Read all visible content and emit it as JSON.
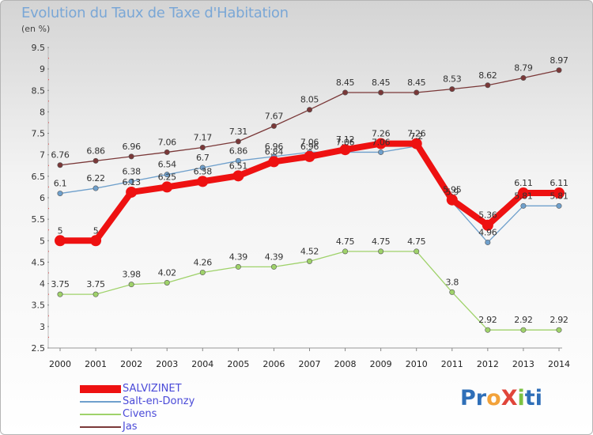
{
  "title": "Evolution du Taux de Taxe d'Habitation",
  "unit_label": "(en %)",
  "logo": {
    "text": "ProXiti",
    "letters": [
      "P",
      "r",
      "o",
      "X",
      "i",
      "t",
      "i"
    ],
    "colors": [
      "#2f6fb8",
      "#2f6fb8",
      "#f2a23a",
      "#e0453a",
      "#7cc242",
      "#2f6fb8",
      "#2f6fb8"
    ]
  },
  "colors": {
    "salvizinet": "#ee1111",
    "salt": "#6fa0cc",
    "civens": "#9fd26a",
    "jas": "#7a3838"
  },
  "chart_data": {
    "type": "line",
    "title": "Evolution du Taux de Taxe d'Habitation",
    "ylabel": "(en %)",
    "xlabel": "",
    "x": [
      "2000",
      "2001",
      "2002",
      "2003",
      "2004",
      "2005",
      "2006",
      "2007",
      "2008",
      "2009",
      "2010",
      "2011",
      "2012",
      "2013",
      "2014"
    ],
    "y_ticks": [
      "2.5",
      "3",
      "3.5",
      "4",
      "4.5",
      "5",
      "5.5",
      "6",
      "6.5",
      "7",
      "7.5",
      "8",
      "8.5",
      "9",
      "9.5"
    ],
    "ylim": [
      2.5,
      9.5
    ],
    "grid": false,
    "legend_position": "bottom-left",
    "series": [
      {
        "name": "SALVIZINET",
        "color": "#ee1111",
        "values": [
          5,
          5,
          6.13,
          6.25,
          6.38,
          6.51,
          6.84,
          6.96,
          7.12,
          7.26,
          7.26,
          5.95,
          5.36,
          6.11,
          6.11
        ],
        "labels": [
          "5",
          "5",
          "6.13",
          "6.25",
          "6.38",
          "6.51",
          "6.84",
          "6.96",
          "7.12",
          "7.26",
          "7.26",
          "5.95",
          "5.36",
          "6.11",
          "6.11"
        ]
      },
      {
        "name": "Salt-en-Donzy",
        "color": "#6fa0cc",
        "values": [
          6.1,
          6.22,
          6.38,
          6.54,
          6.7,
          6.86,
          6.96,
          7.06,
          7.06,
          7.06,
          7.2,
          5.9,
          4.96,
          5.81,
          5.81
        ],
        "labels": [
          "6.1",
          "6.22",
          "6.38",
          "6.54",
          "6.7",
          "6.86",
          "6.96",
          "7.06",
          "7.06",
          "7.06",
          "7.2",
          "5.9",
          "4.96",
          "5.81",
          "5.81"
        ]
      },
      {
        "name": "Civens",
        "color": "#9fd26a",
        "values": [
          3.75,
          3.75,
          3.98,
          4.02,
          4.26,
          4.39,
          4.39,
          4.52,
          4.75,
          4.75,
          4.75,
          3.8,
          2.92,
          2.92,
          2.92
        ],
        "labels": [
          "3.75",
          "3.75",
          "3.98",
          "4.02",
          "4.26",
          "4.39",
          "4.39",
          "4.52",
          "4.75",
          "4.75",
          "4.75",
          "3.8",
          "2.92",
          "2.92",
          "2.92"
        ]
      },
      {
        "name": "Jas",
        "color": "#7a3838",
        "values": [
          6.76,
          6.86,
          6.96,
          7.06,
          7.17,
          7.31,
          7.67,
          8.05,
          8.45,
          8.45,
          8.45,
          8.53,
          8.62,
          8.79,
          8.97
        ],
        "labels": [
          "6.76",
          "6.86",
          "6.96",
          "7.06",
          "7.17",
          "7.31",
          "7.67",
          "8.05",
          "8.45",
          "8.45",
          "8.45",
          "8.53",
          "8.62",
          "8.79",
          "8.97"
        ]
      }
    ]
  }
}
